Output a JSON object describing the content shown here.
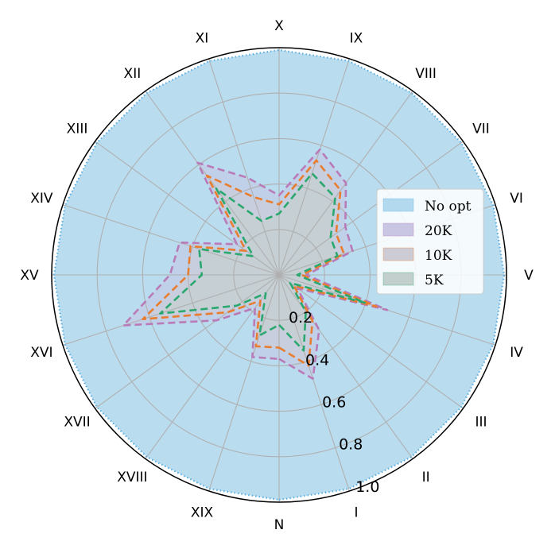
{
  "chart_data": {
    "type": "radar",
    "categories": [
      "N",
      "I",
      "II",
      "III",
      "IV",
      "V",
      "VI",
      "VII",
      "VIII",
      "IX",
      "X",
      "XI",
      "XII",
      "XIII",
      "XIV",
      "XV",
      "XVI",
      "XVII",
      "XVIII",
      "XIX"
    ],
    "rlim": [
      0,
      1.0
    ],
    "rticks": [
      0.2,
      0.4,
      0.6,
      0.8,
      1.0
    ],
    "rtick_labels": [
      "0.2",
      "0.4",
      "0.6",
      "0.8",
      "1.0"
    ],
    "grid": true,
    "legend_position": "right",
    "series": [
      {
        "name": "No opt",
        "values": [
          0.99,
          0.99,
          0.99,
          0.99,
          0.99,
          0.99,
          0.99,
          0.99,
          0.99,
          0.99,
          0.99,
          0.99,
          0.99,
          0.99,
          0.99,
          0.99,
          0.99,
          0.99,
          0.99,
          0.99
        ],
        "color": "#5aaee0",
        "fill": "#b3d9ee"
      },
      {
        "name": "20K",
        "values": [
          0.37,
          0.48,
          0.3,
          0.1,
          0.5,
          0.12,
          0.34,
          0.36,
          0.5,
          0.58,
          0.35,
          0.45,
          0.61,
          0.23,
          0.46,
          0.48,
          0.72,
          0.34,
          0.18,
          0.38
        ],
        "color": "#b97bb8",
        "fill": "#c9c6e4"
      },
      {
        "name": "10K",
        "values": [
          0.32,
          0.42,
          0.25,
          0.08,
          0.45,
          0.1,
          0.3,
          0.31,
          0.46,
          0.53,
          0.31,
          0.36,
          0.54,
          0.18,
          0.41,
          0.4,
          0.63,
          0.28,
          0.14,
          0.33
        ],
        "color": "#e87d2f",
        "fill": "#cdccd4"
      },
      {
        "name": "5K",
        "values": [
          0.22,
          0.35,
          0.2,
          0.06,
          0.4,
          0.08,
          0.27,
          0.28,
          0.42,
          0.47,
          0.27,
          0.25,
          0.47,
          0.14,
          0.37,
          0.34,
          0.55,
          0.23,
          0.1,
          0.28
        ],
        "color": "#2aa86f",
        "fill": "#c2cfcc"
      }
    ]
  }
}
